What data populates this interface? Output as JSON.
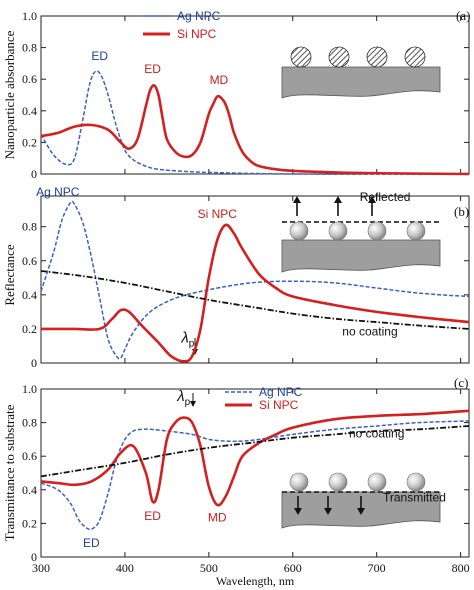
{
  "colors": {
    "ag": "#3a5fc8",
    "si": "#d42020",
    "nocoat": "#111111",
    "substrate": "#999999",
    "sphere": "#bdbdbd"
  },
  "x_axis": {
    "label": "Wavelength, nm",
    "ticks": [
      300,
      400,
      500,
      600,
      700,
      800
    ],
    "range": [
      300,
      810
    ]
  },
  "chart_data": [
    {
      "type": "line",
      "panel": "(a)",
      "ylabel": "Nanoparticle absorbance",
      "ylim": [
        0,
        1.0
      ],
      "yticks": [
        "0",
        "0.2",
        "0.4",
        "0.6",
        "0.8",
        "1.0"
      ],
      "ytick_values": [
        0,
        0.2,
        0.4,
        0.6,
        0.8,
        1.0
      ],
      "legend": [
        {
          "label": "Ag NPC",
          "series": "ag"
        },
        {
          "label": "Si NPC",
          "series": "si"
        }
      ],
      "annotations": [
        {
          "text": "ED",
          "color": "blue",
          "x": 370,
          "y": 0.72
        },
        {
          "text": "ED",
          "color": "red",
          "x": 433,
          "y": 0.64
        },
        {
          "text": "MD",
          "color": "red",
          "x": 512,
          "y": 0.57
        }
      ],
      "series": [
        {
          "name": "Ag NPC",
          "key": "ag",
          "style": "dashed",
          "x": [
            300,
            315,
            330,
            340,
            350,
            358,
            365,
            372,
            380,
            390,
            400,
            410,
            420,
            430,
            440,
            460,
            500,
            600,
            810
          ],
          "y": [
            0.25,
            0.12,
            0.06,
            0.1,
            0.35,
            0.57,
            0.65,
            0.62,
            0.5,
            0.3,
            0.15,
            0.09,
            0.06,
            0.04,
            0.03,
            0.02,
            0.01,
            0.0,
            0.0
          ]
        },
        {
          "name": "Si NPC",
          "key": "si",
          "style": "solid",
          "x": [
            300,
            320,
            340,
            360,
            380,
            395,
            405,
            415,
            425,
            430,
            435,
            440,
            445,
            450,
            460,
            470,
            480,
            490,
            500,
            505,
            510,
            515,
            520,
            525,
            530,
            540,
            550,
            560,
            580,
            600,
            650,
            700,
            810
          ],
          "y": [
            0.24,
            0.26,
            0.3,
            0.31,
            0.28,
            0.2,
            0.16,
            0.22,
            0.43,
            0.53,
            0.56,
            0.5,
            0.35,
            0.22,
            0.14,
            0.11,
            0.12,
            0.2,
            0.38,
            0.44,
            0.49,
            0.48,
            0.44,
            0.36,
            0.26,
            0.14,
            0.08,
            0.05,
            0.03,
            0.02,
            0.01,
            0.005,
            0.0
          ]
        }
      ]
    },
    {
      "type": "line",
      "panel": "(b)",
      "ylabel": "Reflectance",
      "ylim": [
        0,
        1.0
      ],
      "yticks": [
        "0",
        "0.2",
        "0.4",
        "0.6",
        "0.8"
      ],
      "ytick_values": [
        0,
        0.2,
        0.4,
        0.6,
        0.8
      ],
      "annotations": [
        {
          "text": "Ag NPC",
          "color": "blue",
          "x": 320,
          "y": 0.98
        },
        {
          "text": "Si NPC",
          "color": "red",
          "x": 510,
          "y": 0.85
        },
        {
          "text": "λp",
          "color": "black",
          "x": 475,
          "y": 0.12
        },
        {
          "text": "no coating",
          "color": "black",
          "x": 692,
          "y": 0.16
        },
        {
          "text": "Reflected",
          "color": "black",
          "x": 710,
          "y": 0.95
        }
      ],
      "series": [
        {
          "name": "Ag NPC",
          "key": "ag",
          "style": "dashed",
          "x": [
            300,
            315,
            325,
            335,
            340,
            350,
            360,
            370,
            380,
            390,
            395,
            400,
            410,
            430,
            460,
            500,
            550,
            600,
            650,
            700,
            750,
            810
          ],
          "y": [
            0.42,
            0.65,
            0.84,
            0.94,
            0.93,
            0.82,
            0.62,
            0.38,
            0.14,
            0.04,
            0.03,
            0.08,
            0.18,
            0.3,
            0.38,
            0.43,
            0.47,
            0.48,
            0.47,
            0.44,
            0.41,
            0.39
          ]
        },
        {
          "name": "Si NPC",
          "key": "si",
          "style": "solid",
          "x": [
            300,
            340,
            370,
            385,
            395,
            405,
            420,
            440,
            455,
            470,
            480,
            490,
            500,
            510,
            520,
            530,
            540,
            560,
            580,
            600,
            650,
            700,
            750,
            810
          ],
          "y": [
            0.2,
            0.2,
            0.2,
            0.26,
            0.31,
            0.3,
            0.22,
            0.12,
            0.04,
            0.01,
            0.04,
            0.2,
            0.5,
            0.72,
            0.81,
            0.76,
            0.67,
            0.52,
            0.44,
            0.39,
            0.34,
            0.3,
            0.27,
            0.24
          ]
        },
        {
          "name": "no coating",
          "key": "nocoat",
          "style": "dashdot",
          "x": [
            300,
            350,
            400,
            450,
            500,
            550,
            600,
            650,
            700,
            750,
            810
          ],
          "y": [
            0.54,
            0.51,
            0.47,
            0.42,
            0.37,
            0.33,
            0.29,
            0.26,
            0.24,
            0.22,
            0.2
          ]
        }
      ]
    },
    {
      "type": "line",
      "panel": "(c)",
      "ylabel": "Transmittance to substrate",
      "ylim": [
        0,
        1.0
      ],
      "yticks": [
        "0",
        "0.2",
        "0.4",
        "0.6",
        "0.8",
        "1.0"
      ],
      "ytick_values": [
        0,
        0.2,
        0.4,
        0.6,
        0.8,
        1.0
      ],
      "legend": [
        {
          "label": "Ag NPC",
          "series": "ag"
        },
        {
          "label": "Si NPC",
          "series": "si"
        }
      ],
      "annotations": [
        {
          "text": "λp",
          "color": "black",
          "x": 470,
          "y": 0.93
        },
        {
          "text": "ED",
          "color": "blue",
          "x": 360,
          "y": 0.06
        },
        {
          "text": "ED",
          "color": "red",
          "x": 433,
          "y": 0.22
        },
        {
          "text": "MD",
          "color": "red",
          "x": 510,
          "y": 0.21
        },
        {
          "text": "no coating",
          "color": "black",
          "x": 700,
          "y": 0.71
        },
        {
          "text": "Transmitted",
          "color": "black",
          "x": 745,
          "y": 0.33
        }
      ],
      "series": [
        {
          "name": "Ag NPC",
          "key": "ag",
          "style": "dashed",
          "x": [
            300,
            320,
            335,
            345,
            355,
            362,
            370,
            380,
            390,
            400,
            410,
            420,
            430,
            450,
            480,
            500,
            520,
            540,
            560,
            600,
            650,
            700,
            750,
            810
          ],
          "y": [
            0.44,
            0.4,
            0.32,
            0.22,
            0.17,
            0.17,
            0.22,
            0.38,
            0.58,
            0.7,
            0.75,
            0.76,
            0.76,
            0.75,
            0.73,
            0.7,
            0.69,
            0.69,
            0.7,
            0.73,
            0.76,
            0.78,
            0.8,
            0.81
          ]
        },
        {
          "name": "Si NPC",
          "key": "si",
          "style": "solid",
          "x": [
            300,
            320,
            340,
            360,
            380,
            395,
            410,
            425,
            433,
            440,
            450,
            460,
            470,
            480,
            490,
            500,
            510,
            520,
            530,
            540,
            560,
            580,
            600,
            650,
            700,
            750,
            810
          ],
          "y": [
            0.45,
            0.44,
            0.43,
            0.45,
            0.52,
            0.62,
            0.66,
            0.5,
            0.33,
            0.4,
            0.7,
            0.8,
            0.83,
            0.8,
            0.66,
            0.42,
            0.31,
            0.36,
            0.48,
            0.6,
            0.68,
            0.73,
            0.77,
            0.82,
            0.84,
            0.85,
            0.87
          ]
        },
        {
          "name": "no coating",
          "key": "nocoat",
          "style": "dashdot",
          "x": [
            300,
            350,
            400,
            450,
            500,
            550,
            600,
            650,
            700,
            750,
            810
          ],
          "y": [
            0.48,
            0.52,
            0.56,
            0.61,
            0.65,
            0.68,
            0.71,
            0.73,
            0.75,
            0.76,
            0.78
          ]
        }
      ]
    }
  ]
}
